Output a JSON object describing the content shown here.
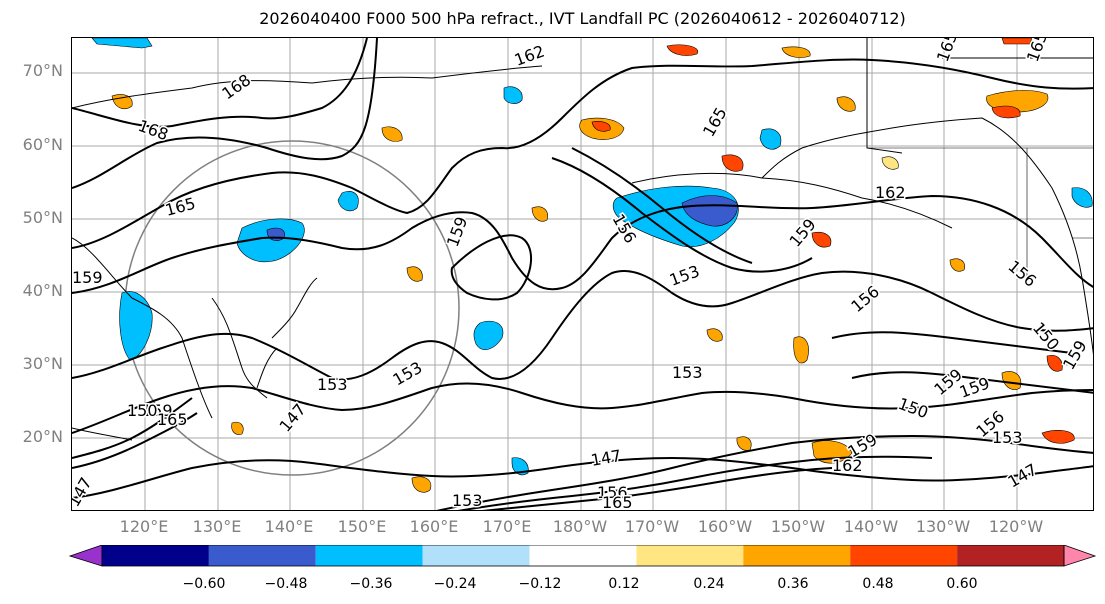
{
  "title": "2026040400 F000 500 hPa refract., IVT Landfall PC (2026040612 - 2026040712)",
  "lat_labels": [
    "70°N",
    "60°N",
    "50°N",
    "40°N",
    "30°N",
    "20°N"
  ],
  "lon_labels": [
    "120°E",
    "130°E",
    "140°E",
    "150°E",
    "160°E",
    "170°E",
    "180°W",
    "170°W",
    "160°W",
    "150°W",
    "140°W",
    "130°W",
    "120°W"
  ],
  "colorbar": {
    "colors": [
      "#9932cc",
      "#00008b",
      "#3a5bcd",
      "#00bfff",
      "#b0e0fa",
      "#ffffff",
      "#ffe682",
      "#ffa500",
      "#ff4500",
      "#b22222",
      "#ff85aa"
    ],
    "tick_labels": [
      "−0.60",
      "−0.48",
      "−0.36",
      "−0.24",
      "−0.12",
      "0.12",
      "0.24",
      "0.36",
      "0.48",
      "0.60"
    ],
    "extend": "both"
  },
  "contour_labels": [
    "168",
    "168",
    "165",
    "162",
    "165",
    "159",
    "159",
    "156",
    "153",
    "162",
    "159",
    "156",
    "156",
    "153",
    "150",
    "150",
    "147",
    "147",
    "147",
    "153",
    "156",
    "153",
    "159",
    "159",
    "159",
    "159",
    "162",
    "153",
    "150",
    "147",
    "165",
    "165",
    "165",
    "165",
    "156",
    "153",
    "159"
  ]
}
